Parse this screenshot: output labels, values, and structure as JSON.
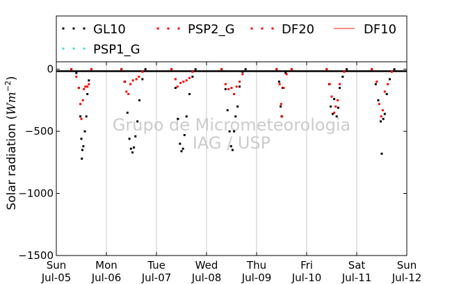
{
  "chart_data": {
    "type": "scatter",
    "ylabel": "Solar radiation ($Wm^{-2}$)",
    "ylabel_text": "Solar radiation (",
    "ylabel_unit": "Wm",
    "ylabel_exp": "−2",
    "ylabel_close": ")",
    "ylim": [
      -1500,
      60
    ],
    "yticks": [
      0,
      -500,
      -1000,
      -1500
    ],
    "ytick_labels": [
      "0",
      "−500",
      "−1000",
      "−1500"
    ],
    "xlim": [
      0,
      7
    ],
    "xticks": [
      {
        "x": 0,
        "day": "Sun",
        "date": "Jul-05"
      },
      {
        "x": 1,
        "day": "Mon",
        "date": "Jul-06"
      },
      {
        "x": 2,
        "day": "Tue",
        "date": "Jul-07"
      },
      {
        "x": 3,
        "day": "Wed",
        "date": "Jul-08"
      },
      {
        "x": 4,
        "day": "Thu",
        "date": "Jul-09"
      },
      {
        "x": 5,
        "day": "Fri",
        "date": "Jul-10"
      },
      {
        "x": 6,
        "day": "Sat",
        "date": "Jul-11"
      },
      {
        "x": 7,
        "day": "Sun",
        "date": "Jul-12"
      }
    ],
    "grid": "vertical",
    "watermark": [
      "Grupo de Micrometeorologia",
      "IAG / USP"
    ],
    "legend_position": "top",
    "series": [
      {
        "name": "GL10",
        "marker": "dots",
        "color": "#000000",
        "points": [
          [
            0.3,
            0
          ],
          [
            0.4,
            -30
          ],
          [
            0.45,
            -150
          ],
          [
            0.48,
            -380
          ],
          [
            0.5,
            -560
          ],
          [
            0.51,
            -720
          ],
          [
            0.52,
            -650
          ],
          [
            0.54,
            -620
          ],
          [
            0.57,
            -500
          ],
          [
            0.6,
            -380
          ],
          [
            0.62,
            -200
          ],
          [
            0.65,
            -90
          ],
          [
            0.7,
            0
          ],
          [
            1.3,
            0
          ],
          [
            1.37,
            -100
          ],
          [
            1.42,
            -350
          ],
          [
            1.46,
            -560
          ],
          [
            1.49,
            -640
          ],
          [
            1.52,
            -670
          ],
          [
            1.55,
            -630
          ],
          [
            1.58,
            -540
          ],
          [
            1.62,
            -420
          ],
          [
            1.66,
            -250
          ],
          [
            1.72,
            -80
          ],
          [
            1.78,
            0
          ],
          [
            2.3,
            0
          ],
          [
            2.38,
            -150
          ],
          [
            2.43,
            -400
          ],
          [
            2.47,
            -600
          ],
          [
            2.5,
            -660
          ],
          [
            2.53,
            -640
          ],
          [
            2.56,
            -530
          ],
          [
            2.6,
            -380
          ],
          [
            2.66,
            -200
          ],
          [
            2.72,
            -60
          ],
          [
            2.78,
            0
          ],
          [
            3.3,
            0
          ],
          [
            3.38,
            -160
          ],
          [
            3.42,
            -330
          ],
          [
            3.46,
            -500
          ],
          [
            3.49,
            -620
          ],
          [
            3.52,
            -650
          ],
          [
            3.55,
            -500
          ],
          [
            3.58,
            -380
          ],
          [
            3.62,
            -300
          ],
          [
            3.66,
            -140
          ],
          [
            3.72,
            -20
          ],
          [
            3.78,
            0
          ],
          [
            4.4,
            0
          ],
          [
            4.45,
            -100
          ],
          [
            4.48,
            -300
          ],
          [
            4.5,
            -380
          ],
          [
            4.52,
            -150
          ],
          [
            4.58,
            -30
          ],
          [
            4.7,
            0
          ],
          [
            5.4,
            0
          ],
          [
            5.45,
            -120
          ],
          [
            5.48,
            -300
          ],
          [
            5.52,
            -360
          ],
          [
            5.55,
            -240
          ],
          [
            5.6,
            -380
          ],
          [
            5.63,
            -310
          ],
          [
            5.66,
            -150
          ],
          [
            5.72,
            -60
          ],
          [
            5.8,
            0
          ],
          [
            6.3,
            0
          ],
          [
            6.38,
            -120
          ],
          [
            6.43,
            -250
          ],
          [
            6.48,
            -420
          ],
          [
            6.5,
            -680
          ],
          [
            6.53,
            -400
          ],
          [
            6.56,
            -360
          ],
          [
            6.6,
            -200
          ],
          [
            6.66,
            -80
          ],
          [
            6.75,
            0
          ]
        ]
      },
      {
        "name": "PSP1_G",
        "marker": "dots",
        "color": "#40e0d0",
        "points": []
      },
      {
        "name": "PSP2_G",
        "marker": "dots",
        "color": "#ff0000",
        "points": [
          [
            0.3,
            0
          ],
          [
            0.4,
            -60
          ],
          [
            0.45,
            -150
          ],
          [
            0.48,
            -280
          ],
          [
            0.5,
            -400
          ],
          [
            0.53,
            -250
          ],
          [
            0.55,
            -160
          ],
          [
            0.58,
            -140
          ],
          [
            0.62,
            -140
          ],
          [
            0.65,
            -120
          ],
          [
            0.7,
            0
          ],
          [
            1.3,
            0
          ],
          [
            1.36,
            -100
          ],
          [
            1.4,
            -180
          ],
          [
            1.44,
            -200
          ],
          [
            1.48,
            -120
          ],
          [
            1.53,
            -90
          ],
          [
            1.6,
            -80
          ],
          [
            1.65,
            -60
          ],
          [
            1.72,
            -20
          ],
          [
            2.3,
            0
          ],
          [
            2.38,
            -80
          ],
          [
            2.42,
            -140
          ],
          [
            2.48,
            -110
          ],
          [
            2.54,
            -100
          ],
          [
            2.6,
            -90
          ],
          [
            2.66,
            -70
          ],
          [
            2.72,
            -20
          ],
          [
            3.3,
            0
          ],
          [
            3.38,
            -120
          ],
          [
            3.44,
            -160
          ],
          [
            3.5,
            -150
          ],
          [
            3.55,
            -200
          ],
          [
            3.6,
            -140
          ],
          [
            3.66,
            -100
          ],
          [
            3.72,
            -40
          ],
          [
            4.4,
            0
          ],
          [
            4.46,
            -120
          ],
          [
            4.49,
            -280
          ],
          [
            4.51,
            -380
          ],
          [
            4.54,
            -150
          ],
          [
            4.6,
            -40
          ],
          [
            4.7,
            0
          ],
          [
            5.4,
            0
          ],
          [
            5.46,
            -120
          ],
          [
            5.5,
            -220
          ],
          [
            5.55,
            -350
          ],
          [
            5.58,
            -300
          ],
          [
            5.62,
            -250
          ],
          [
            5.66,
            -120
          ],
          [
            5.75,
            -20
          ],
          [
            6.3,
            0
          ],
          [
            6.4,
            -100
          ],
          [
            6.45,
            -280
          ],
          [
            6.49,
            -380
          ],
          [
            6.52,
            -330
          ],
          [
            6.56,
            -180
          ],
          [
            6.62,
            -120
          ],
          [
            6.7,
            -20
          ]
        ]
      },
      {
        "name": "DF20",
        "marker": "dots",
        "color": "#ff0000",
        "points": []
      },
      {
        "name": "DF10",
        "marker": "line",
        "color": "#ff6666",
        "points": []
      }
    ]
  }
}
